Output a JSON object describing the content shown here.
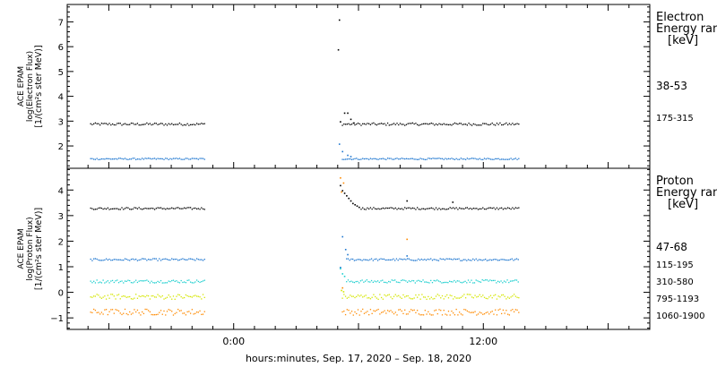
{
  "chart_data": [
    {
      "type": "scatter",
      "panel": "electron",
      "ylabel_lines": [
        "ACE EPAM",
        "log(Electron Flux)",
        "[1/(cm²s ster MeV)]"
      ],
      "yticks": [
        "2",
        "3",
        "4",
        "5",
        "6",
        "7"
      ],
      "ylim": [
        1.1,
        7.7
      ],
      "legend_title_lines": [
        "Electron",
        "Energy ran",
        "[keV]"
      ],
      "legend_placement": "right",
      "series": [
        {
          "name": "38-53",
          "color": "#000000",
          "baseline": 2.9,
          "noise": 0.05,
          "segments": [
            [
              -6.9,
              -1.4
            ],
            [
              5.2,
              13.7
            ]
          ],
          "points": [
            [
              5.05,
              7.1
            ],
            [
              5.0,
              5.9
            ],
            [
              5.1,
              3.0
            ],
            [
              5.3,
              3.35
            ],
            [
              5.45,
              3.35
            ],
            [
              5.6,
              3.1
            ],
            [
              5.75,
              2.95
            ]
          ]
        },
        {
          "name": "175-315",
          "color": "#1f77d0",
          "baseline": 1.5,
          "noise": 0.03,
          "segments": [
            [
              -6.9,
              -1.4
            ],
            [
              5.2,
              13.7
            ]
          ],
          "points": [
            [
              5.05,
              2.1
            ],
            [
              5.2,
              1.8
            ],
            [
              5.45,
              1.65
            ],
            [
              5.6,
              1.6
            ]
          ]
        }
      ]
    },
    {
      "type": "scatter",
      "panel": "proton",
      "ylabel_lines": [
        "ACE EPAM",
        "log(Proton Flux)",
        "[1/(cm²s ster MeV)]"
      ],
      "yticks": [
        "−1",
        "0",
        "1",
        "2",
        "3",
        "4"
      ],
      "ylim": [
        -1.45,
        4.85
      ],
      "legend_title_lines": [
        "Proton",
        "Energy ran",
        "[keV]"
      ],
      "legend_placement": "right",
      "series": [
        {
          "name": "47-68",
          "color": "#000000",
          "baseline": 3.3,
          "noise": 0.04,
          "segments": [
            [
              -6.9,
              -1.4
            ],
            [
              6.1,
              13.7
            ]
          ],
          "points": [
            [
              5.1,
              4.2
            ],
            [
              5.2,
              4.0
            ],
            [
              5.3,
              3.9
            ],
            [
              5.4,
              3.8
            ],
            [
              5.5,
              3.7
            ],
            [
              5.6,
              3.6
            ],
            [
              5.7,
              3.5
            ],
            [
              5.8,
              3.45
            ],
            [
              5.9,
              3.4
            ],
            [
              6.0,
              3.35
            ],
            [
              8.3,
              3.6
            ],
            [
              10.5,
              3.55
            ]
          ]
        },
        {
          "name": "115-195",
          "color": "#1f77d0",
          "baseline": 1.3,
          "noise": 0.04,
          "segments": [
            [
              -6.9,
              -1.4
            ],
            [
              5.4,
              13.7
            ]
          ],
          "points": [
            [
              5.2,
              2.2
            ],
            [
              5.1,
              1.0
            ],
            [
              5.35,
              1.7
            ],
            [
              5.45,
              1.5
            ],
            [
              8.3,
              1.45
            ]
          ]
        },
        {
          "name": "310-580",
          "color": "#1ecfcf",
          "baseline": 0.45,
          "noise": 0.06,
          "segments": [
            [
              -6.9,
              -1.4
            ],
            [
              5.4,
              13.7
            ]
          ],
          "points": [
            [
              5.1,
              0.95
            ],
            [
              5.2,
              0.75
            ],
            [
              5.3,
              0.65
            ]
          ]
        },
        {
          "name": "795-1193",
          "color": "#d4e600",
          "baseline": -0.15,
          "noise": 0.1,
          "segments": [
            [
              -6.9,
              -1.4
            ],
            [
              5.2,
              13.7
            ]
          ],
          "points": [
            [
              5.15,
              0.1
            ],
            [
              5.25,
              0.05
            ]
          ]
        },
        {
          "name": "1060-1900",
          "color": "#ff8a00",
          "baseline": -0.75,
          "noise": 0.12,
          "segments": [
            [
              -6.9,
              -1.4
            ],
            [
              5.2,
              13.7
            ]
          ],
          "points": [
            [
              5.1,
              4.5
            ],
            [
              5.15,
              3.95
            ],
            [
              5.25,
              4.3
            ],
            [
              8.3,
              2.1
            ],
            [
              5.2,
              0.2
            ]
          ]
        }
      ]
    }
  ],
  "x_axis": {
    "xlabel": "hours:minutes, Sep. 17, 2020 – Sep. 18, 2020",
    "xlim": [
      -8.0,
      20.0
    ],
    "tick_labels": [
      {
        "hour": 0,
        "label": "0:00"
      },
      {
        "hour": 12,
        "label": "12:00"
      }
    ]
  }
}
